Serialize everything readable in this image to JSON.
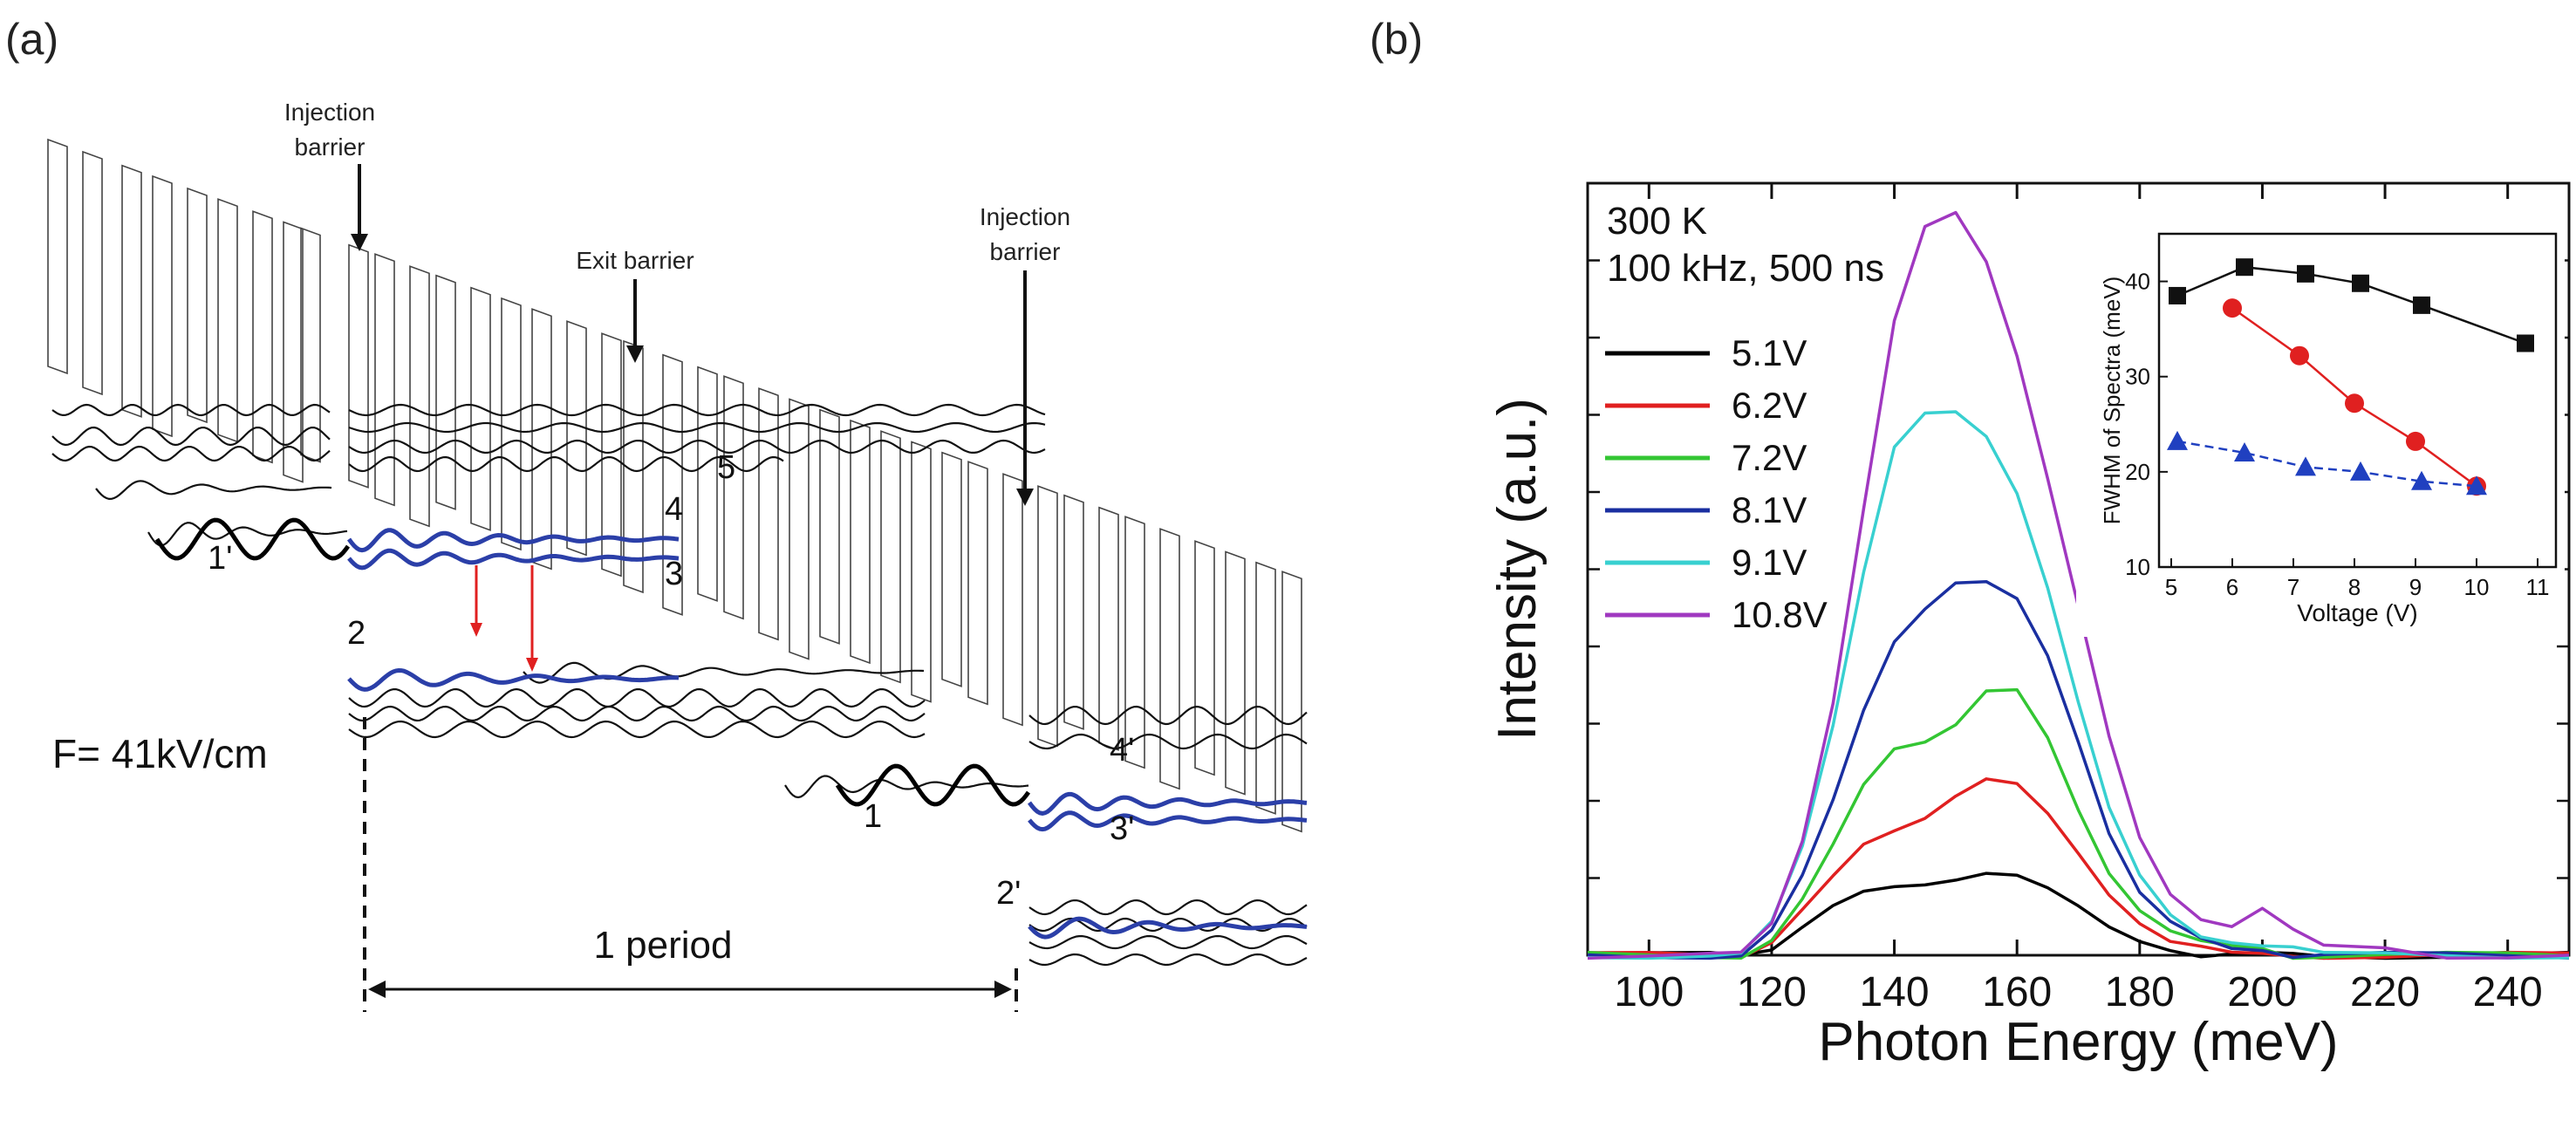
{
  "panel_a": {
    "label": "(a)",
    "field_text": "F= 41kV/cm",
    "annotations": {
      "injection_barrier_left": [
        "Injection",
        "barrier"
      ],
      "exit_barrier": "Exit barrier",
      "injection_barrier_right": [
        "Injection",
        "barrier"
      ]
    },
    "level_labels": [
      "1'",
      "2",
      "3",
      "4",
      "5",
      "1",
      "2'",
      "3'",
      "4'"
    ],
    "period_text": "1 period",
    "colors": {
      "levels_highlight": "#2b3fa8",
      "transition_arrow": "#e02020",
      "lines": "#111111",
      "barriers": "#444444"
    }
  },
  "panel_b": {
    "label": "(b)"
  },
  "chart_data": [
    {
      "type": "line",
      "title": "",
      "annotation": [
        "300 K",
        "100 kHz, 500 ns"
      ],
      "xlabel": "Photon Energy (meV)",
      "ylabel": "Intensity (a.u.)",
      "xlim": [
        90,
        250
      ],
      "ylim": [
        0,
        1.0
      ],
      "xticks": [
        100,
        120,
        140,
        160,
        180,
        200,
        220,
        240
      ],
      "yticks_labeled": false,
      "legend_position": "left",
      "x": [
        90,
        100,
        110,
        115,
        120,
        125,
        130,
        135,
        140,
        145,
        150,
        155,
        160,
        165,
        170,
        175,
        180,
        185,
        190,
        195,
        200,
        205,
        210,
        220,
        230,
        240,
        250
      ],
      "series": [
        {
          "name": "5.1V",
          "color": "#000000",
          "values": [
            0.0,
            0.0,
            0.0,
            0.0,
            0.01,
            0.04,
            0.065,
            0.08,
            0.085,
            0.09,
            0.1,
            0.11,
            0.105,
            0.085,
            0.06,
            0.035,
            0.02,
            0.01,
            0.0,
            0.0,
            0.0,
            0.0,
            0.0,
            0.0,
            0.0,
            0.0,
            0.0
          ]
        },
        {
          "name": "6.2V",
          "color": "#e02020",
          "values": [
            0.0,
            0.0,
            0.0,
            0.0,
            0.02,
            0.06,
            0.1,
            0.14,
            0.16,
            0.18,
            0.21,
            0.23,
            0.22,
            0.18,
            0.13,
            0.08,
            0.045,
            0.02,
            0.01,
            0.0,
            0.0,
            0.0,
            0.0,
            0.0,
            0.0,
            0.0,
            0.0
          ]
        },
        {
          "name": "7.2V",
          "color": "#33c633",
          "values": [
            0.0,
            0.0,
            0.0,
            0.0,
            0.02,
            0.07,
            0.14,
            0.22,
            0.27,
            0.28,
            0.3,
            0.34,
            0.34,
            0.28,
            0.19,
            0.11,
            0.06,
            0.03,
            0.015,
            0.01,
            0.01,
            0.0,
            0.0,
            0.0,
            0.0,
            0.0,
            0.0
          ]
        },
        {
          "name": "8.1V",
          "color": "#1a2fa0",
          "values": [
            0.0,
            0.0,
            0.0,
            0.0,
            0.03,
            0.1,
            0.2,
            0.32,
            0.41,
            0.45,
            0.48,
            0.48,
            0.46,
            0.39,
            0.28,
            0.16,
            0.08,
            0.04,
            0.02,
            0.01,
            0.01,
            0.0,
            0.0,
            0.0,
            0.0,
            0.0,
            0.0
          ]
        },
        {
          "name": "9.1V",
          "color": "#38d0d0",
          "values": [
            0.0,
            0.0,
            0.0,
            0.0,
            0.04,
            0.14,
            0.3,
            0.5,
            0.66,
            0.7,
            0.7,
            0.67,
            0.6,
            0.48,
            0.33,
            0.19,
            0.1,
            0.05,
            0.025,
            0.02,
            0.015,
            0.01,
            0.0,
            0.0,
            0.0,
            0.0,
            0.0
          ]
        },
        {
          "name": "10.8V",
          "color": "#a038c0",
          "values": [
            0.0,
            0.0,
            0.0,
            0.0,
            0.04,
            0.15,
            0.33,
            0.58,
            0.82,
            0.94,
            0.96,
            0.9,
            0.78,
            0.62,
            0.45,
            0.28,
            0.15,
            0.08,
            0.05,
            0.04,
            0.06,
            0.03,
            0.01,
            0.01,
            0.0,
            0.0,
            0.0
          ]
        }
      ]
    },
    {
      "type": "scatter",
      "title": "",
      "xlabel": "Voltage (V)",
      "ylabel": "FWHM of Spectra (meV)",
      "xlim": [
        4.8,
        11.3
      ],
      "ylim": [
        10,
        45
      ],
      "xticks": [
        5,
        6,
        7,
        8,
        9,
        10,
        11
      ],
      "yticks": [
        10,
        20,
        30,
        40
      ],
      "series": [
        {
          "marker": "square",
          "color": "#111111",
          "line": "solid",
          "x": [
            5.1,
            6.2,
            7.2,
            8.1,
            9.1,
            10.8
          ],
          "values": [
            38.5,
            41.5,
            40.8,
            39.8,
            37.5,
            33.5
          ]
        },
        {
          "marker": "circle",
          "color": "#e02020",
          "line": "solid",
          "x": [
            6.0,
            7.1,
            8.0,
            9.0,
            10.0
          ],
          "values": [
            37.2,
            32.2,
            27.2,
            23.2,
            18.5
          ]
        },
        {
          "marker": "triangle",
          "color": "#2040c0",
          "line": "dashed",
          "x": [
            5.1,
            6.2,
            7.2,
            8.1,
            9.1,
            10.0
          ],
          "values": [
            23.2,
            22.0,
            20.5,
            20.0,
            19.0,
            18.5
          ]
        }
      ]
    }
  ]
}
